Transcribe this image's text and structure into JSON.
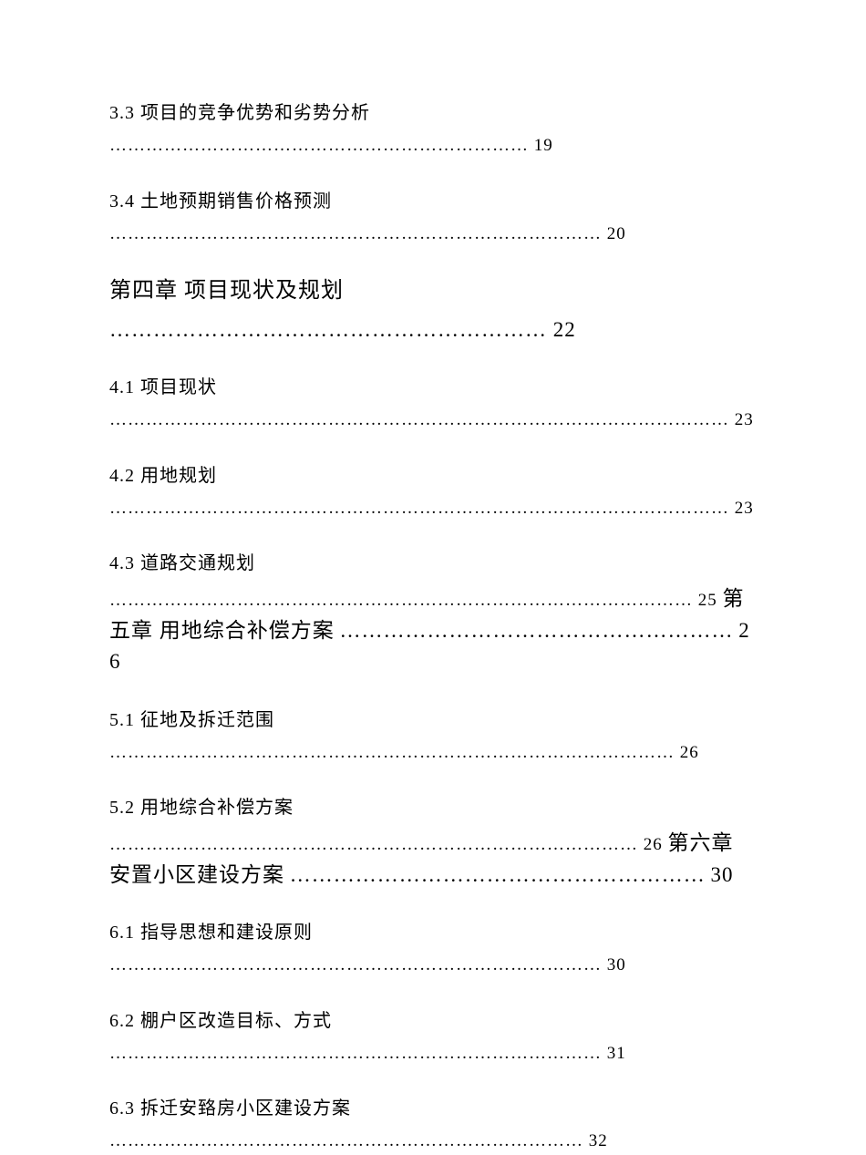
{
  "entries": [
    {
      "type": "sub",
      "title": "3.3 项目的竞争优势和劣势分析",
      "dots": "……………………………………………………………",
      "page": "19"
    },
    {
      "type": "sub",
      "title": "3.4 土地预期销售价格预测",
      "dots": "………………………………………………………………………",
      "page": "20"
    },
    {
      "type": "chapter",
      "title": "第四章  项目现状及规划",
      "dots": "……………………………………………………",
      "page": "22"
    },
    {
      "type": "sub",
      "title": "4.1 项目现状",
      "dots": "…………………………………………………………………………………………",
      "page": "23"
    },
    {
      "type": "sub",
      "title": "4.2 用地规划",
      "dots": "…………………………………………………………………………………………",
      "page": "23"
    },
    {
      "type": "sub-combined",
      "title": "4.3 道路交通规划",
      "dots": "……………………………………………………………………………………",
      "page": "25",
      "next_chapter": "第五章  用地综合补偿方案",
      "next_dots": "………………………………………………",
      "next_page": "26"
    },
    {
      "type": "sub",
      "title": "5.1 征地及拆迁范围",
      "dots": "…………………………………………………………………………………",
      "page": "26"
    },
    {
      "type": "sub-combined",
      "title": "5.2 用地综合补偿方案",
      "dots": "……………………………………………………………………………",
      "page": "26",
      "next_chapter": "第六章  安置小区建设方案",
      "next_dots": "…………………………………………………",
      "next_page": "30"
    },
    {
      "type": "sub",
      "title": "6.1 指导思想和建设原则",
      "dots": "………………………………………………………………………",
      "page": "30"
    },
    {
      "type": "sub",
      "title": "6.2 棚户区改造目标、方式",
      "dots": "………………………………………………………………………",
      "page": "31"
    },
    {
      "type": "sub",
      "title": "6.3 拆迁安臵房小区建设方案",
      "dots": "……………………………………………………………………",
      "page": "32"
    }
  ],
  "styles": {
    "sub_fontsize": 20,
    "chapter_fontsize": 24,
    "text_color": "#000000",
    "background_color": "#ffffff"
  }
}
